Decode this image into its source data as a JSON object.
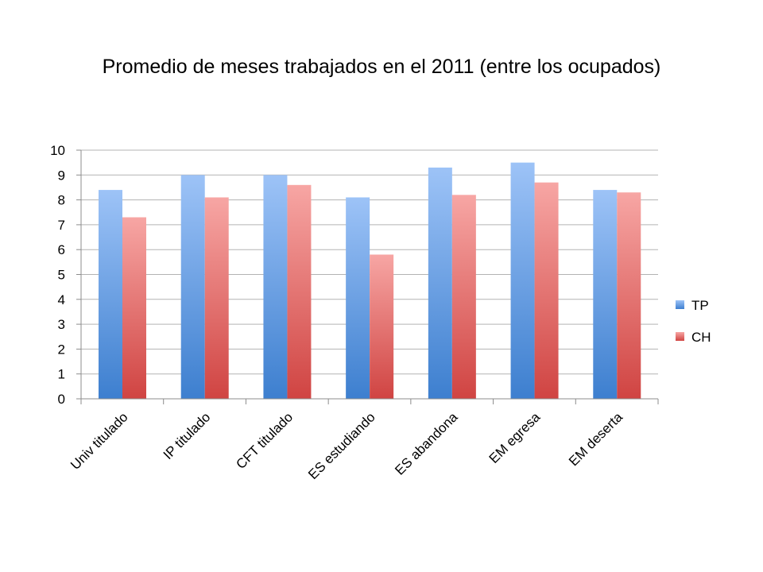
{
  "chart_data": {
    "type": "bar",
    "title": "Promedio de meses trabajados en el 2011 (entre los ocupados)",
    "xlabel": "",
    "ylabel": "",
    "ylim": [
      0,
      10
    ],
    "yticks": [
      0,
      1,
      2,
      3,
      4,
      5,
      6,
      7,
      8,
      9,
      10
    ],
    "grid": true,
    "legend_position": "right",
    "categories": [
      "Univ titulado",
      "IP titulado",
      "CFT titulado",
      "ES estudiando",
      "ES abandona",
      "EM egresa",
      "EM deserta"
    ],
    "series": [
      {
        "name": "TP",
        "values": [
          8.4,
          9.0,
          9.0,
          8.1,
          9.3,
          9.5,
          8.4
        ],
        "color_top": "#9dc3f7",
        "color_bottom": "#3d7fcf"
      },
      {
        "name": "CH",
        "values": [
          7.3,
          8.1,
          8.6,
          5.8,
          8.2,
          8.7,
          8.3
        ],
        "color_top": "#f7a6a4",
        "color_bottom": "#d04442"
      }
    ]
  }
}
